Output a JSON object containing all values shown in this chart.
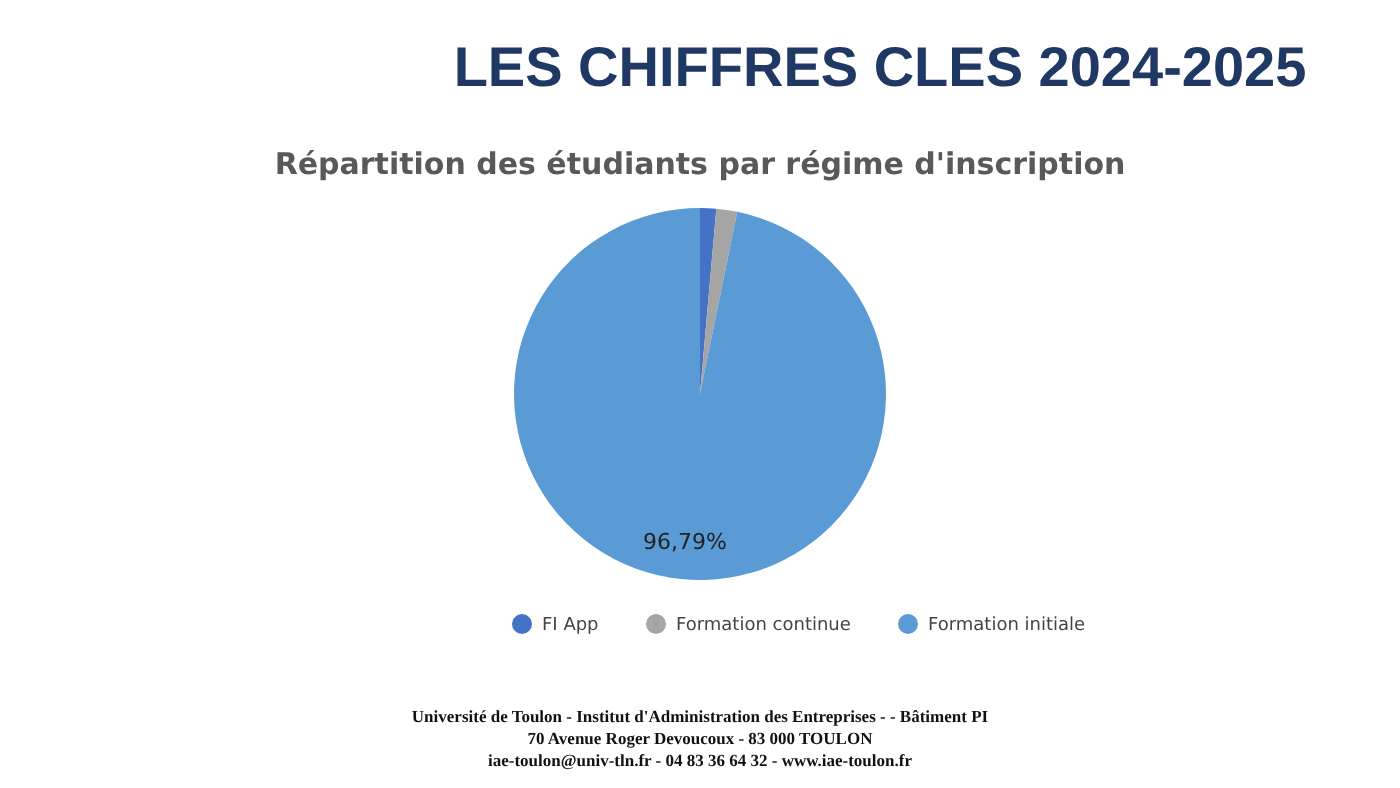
{
  "chart_data": {
    "type": "pie",
    "title": "LES CHIFFRES CLES 2024-2025",
    "subtitle": "Répartition des étudiants par régime d'inscription",
    "categories": [
      "FI App",
      "Formation continue",
      "Formation initiale"
    ],
    "values": [
      1.4,
      1.81,
      96.79
    ],
    "colors": [
      "#4472c4",
      "#a5a5a5",
      "#5b9bd5"
    ],
    "value_labels": [
      null,
      null,
      "96,79%"
    ],
    "legend": "bottom",
    "annotations": [
      "Université de Toulon - Institut d'Administration des Entreprises - - Bâtiment PI",
      "70 Avenue Roger Devoucoux - 83 000 TOULON",
      "iae-toulon@univ-tln.fr - 04 83 36 64 32 - www.iae-toulon.fr"
    ]
  }
}
